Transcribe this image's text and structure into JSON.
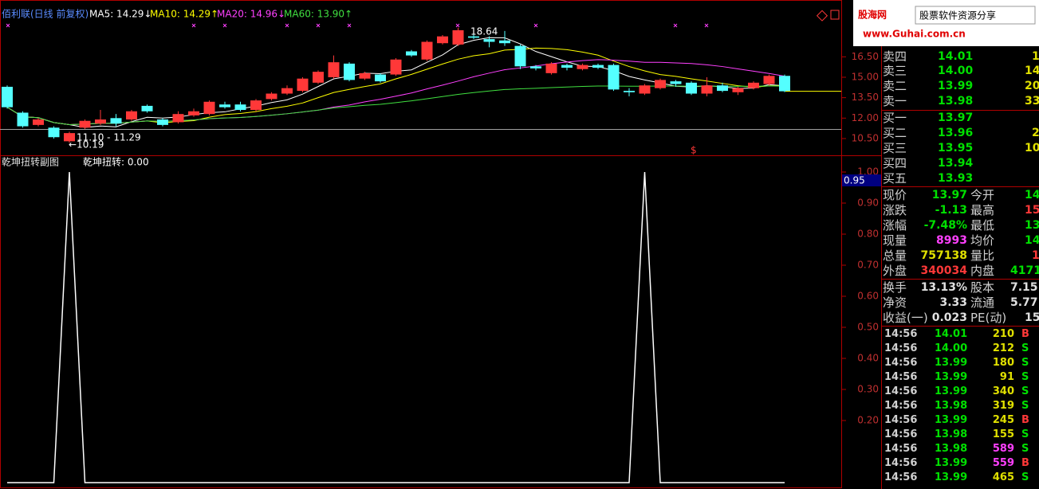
{
  "header": {
    "legend": [
      {
        "text": "佰利联(日线 前复权)",
        "color": "#5a8cff"
      },
      {
        "text": "MA5: 14.29↓",
        "color": "#ffffff"
      },
      {
        "text": "MA10: 14.29↑",
        "color": "#ffff00"
      },
      {
        "text": "MA20: 14.96↓",
        "color": "#ff40ff"
      },
      {
        "text": "MA60: 13.90↑",
        "color": "#40e040"
      }
    ]
  },
  "main_chart": {
    "type": "candlestick",
    "ylim": [
      9.27,
      20.67
    ],
    "yticks": [
      {
        "value": 16.5,
        "label": "16.50"
      },
      {
        "value": 15,
        "label": "15.00"
      },
      {
        "value": 13.5,
        "label": "13.50"
      },
      {
        "value": 12,
        "label": "12.00"
      },
      {
        "value": 10.5,
        "label": "10.50"
      }
    ],
    "up_color": "#ff3838",
    "down_color": "#54ffff",
    "candles": [
      {
        "o": 14.3,
        "h": 14.4,
        "l": 12.7,
        "c": 12.8
      },
      {
        "o": 12.4,
        "h": 12.5,
        "l": 11.3,
        "c": 11.4
      },
      {
        "o": 11.5,
        "h": 12.0,
        "l": 11.4,
        "c": 11.9
      },
      {
        "o": 11.3,
        "h": 11.4,
        "l": 10.5,
        "c": 10.6
      },
      {
        "o": 10.3,
        "h": 11.0,
        "l": 10.19,
        "c": 10.9
      },
      {
        "o": 11.3,
        "h": 11.9,
        "l": 11.2,
        "c": 11.8
      },
      {
        "o": 11.6,
        "h": 12.6,
        "l": 11.5,
        "c": 11.9
      },
      {
        "o": 12.0,
        "h": 12.3,
        "l": 11.4,
        "c": 11.6
      },
      {
        "o": 11.9,
        "h": 12.6,
        "l": 11.8,
        "c": 12.5
      },
      {
        "o": 12.9,
        "h": 13.0,
        "l": 12.4,
        "c": 12.5
      },
      {
        "o": 11.9,
        "h": 12.0,
        "l": 11.4,
        "c": 11.5
      },
      {
        "o": 11.7,
        "h": 12.5,
        "l": 11.6,
        "c": 12.3
      },
      {
        "o": 12.2,
        "h": 12.7,
        "l": 12.1,
        "c": 12.5
      },
      {
        "o": 12.3,
        "h": 13.3,
        "l": 12.2,
        "c": 13.2
      },
      {
        "o": 13.0,
        "h": 13.2,
        "l": 12.7,
        "c": 12.8
      },
      {
        "o": 13.0,
        "h": 13.2,
        "l": 12.5,
        "c": 12.6
      },
      {
        "o": 12.6,
        "h": 13.4,
        "l": 12.5,
        "c": 13.3
      },
      {
        "o": 13.4,
        "h": 13.9,
        "l": 13.3,
        "c": 13.8
      },
      {
        "o": 13.8,
        "h": 14.4,
        "l": 13.7,
        "c": 14.2
      },
      {
        "o": 14.0,
        "h": 15.0,
        "l": 13.9,
        "c": 14.9
      },
      {
        "o": 14.6,
        "h": 15.5,
        "l": 14.5,
        "c": 15.4
      },
      {
        "o": 15.0,
        "h": 16.6,
        "l": 14.9,
        "c": 16.1
      },
      {
        "o": 16.0,
        "h": 16.1,
        "l": 14.7,
        "c": 14.8
      },
      {
        "o": 14.9,
        "h": 15.4,
        "l": 14.8,
        "c": 15.3
      },
      {
        "o": 15.2,
        "h": 15.3,
        "l": 14.6,
        "c": 14.7
      },
      {
        "o": 15.2,
        "h": 16.4,
        "l": 15.1,
        "c": 16.3
      },
      {
        "o": 16.9,
        "h": 17.0,
        "l": 16.5,
        "c": 16.6
      },
      {
        "o": 16.3,
        "h": 17.7,
        "l": 16.2,
        "c": 17.6
      },
      {
        "o": 17.5,
        "h": 18.1,
        "l": 17.4,
        "c": 18.0
      },
      {
        "o": 17.4,
        "h": 18.64,
        "l": 17.3,
        "c": 18.45
      },
      {
        "o": 18.0,
        "h": 18.2,
        "l": 17.8,
        "c": 17.9
      },
      {
        "o": 17.8,
        "h": 18.0,
        "l": 17.2,
        "c": 17.6
      },
      {
        "o": 17.7,
        "h": 18.4,
        "l": 17.3,
        "c": 17.5
      },
      {
        "o": 17.3,
        "h": 17.4,
        "l": 15.6,
        "c": 15.8
      },
      {
        "o": 15.8,
        "h": 15.9,
        "l": 15.5,
        "c": 15.65
      },
      {
        "o": 15.3,
        "h": 16.1,
        "l": 15.2,
        "c": 16.0
      },
      {
        "o": 15.9,
        "h": 16.0,
        "l": 15.5,
        "c": 15.7
      },
      {
        "o": 15.6,
        "h": 16.0,
        "l": 15.5,
        "c": 15.9
      },
      {
        "o": 15.9,
        "h": 16.0,
        "l": 15.6,
        "c": 15.7
      },
      {
        "o": 15.9,
        "h": 16.0,
        "l": 14.0,
        "c": 14.1
      },
      {
        "o": 14.0,
        "h": 14.2,
        "l": 13.6,
        "c": 13.9
      },
      {
        "o": 13.8,
        "h": 14.5,
        "l": 13.7,
        "c": 14.4
      },
      {
        "o": 14.2,
        "h": 14.9,
        "l": 14.1,
        "c": 14.8
      },
      {
        "o": 14.7,
        "h": 14.8,
        "l": 14.3,
        "c": 14.5
      },
      {
        "o": 14.6,
        "h": 14.7,
        "l": 13.7,
        "c": 13.8
      },
      {
        "o": 13.8,
        "h": 15.0,
        "l": 13.6,
        "c": 14.4
      },
      {
        "o": 14.4,
        "h": 14.6,
        "l": 13.9,
        "c": 14.0
      },
      {
        "o": 13.9,
        "h": 14.3,
        "l": 13.7,
        "c": 14.2
      },
      {
        "o": 14.2,
        "h": 14.7,
        "l": 14.1,
        "c": 14.6
      },
      {
        "o": 14.5,
        "h": 15.2,
        "l": 14.4,
        "c": 15.1
      },
      {
        "o": 15.1,
        "h": 15.2,
        "l": 13.9,
        "c": 13.97
      }
    ],
    "annotations": [
      "18.64",
      "11.10 - 11.29",
      "←10.19",
      "$"
    ]
  },
  "sub_chart": {
    "type": "line",
    "title": "乾坤扭转副图",
    "value_text": "乾坤扭转: 0.00",
    "ylim": [
      0,
      1.05
    ],
    "yticks": [
      {
        "value": 1,
        "label": "1.00"
      },
      {
        "value": 0.9,
        "label": "0.90"
      },
      {
        "value": 0.8,
        "label": "0.80"
      },
      {
        "value": 0.7,
        "label": "0.70"
      },
      {
        "value": 0.6,
        "label": "0.60"
      },
      {
        "value": 0.5,
        "label": "0.50"
      },
      {
        "value": 0.4,
        "label": "0.40"
      },
      {
        "value": 0.3,
        "label": "0.30"
      },
      {
        "value": 0.2,
        "label": "0.20"
      }
    ],
    "cursor_label": "0.95",
    "color": "#ffffff",
    "values": [
      0,
      0,
      0,
      0,
      1,
      0,
      0,
      0,
      0,
      0,
      0,
      0,
      0,
      0,
      0,
      0,
      0,
      0,
      0,
      0,
      0,
      0,
      0,
      0,
      0,
      0,
      0,
      0,
      0,
      0,
      0,
      0,
      0,
      0,
      0,
      0,
      0,
      0,
      0,
      0,
      0,
      1,
      0,
      0,
      0,
      0,
      0,
      0,
      0,
      0,
      0
    ]
  },
  "watermark": {
    "brand": "股海网",
    "slogan": "股票软件资源分享",
    "url": "www.Guhai.com.cn"
  },
  "order_book": [
    {
      "label": "卖四",
      "price": "14.01",
      "vol": "1"
    },
    {
      "label": "卖三",
      "price": "14.00",
      "vol": "14"
    },
    {
      "label": "卖二",
      "price": "13.99",
      "vol": "20"
    },
    {
      "label": "卖一",
      "price": "13.98",
      "vol": "33"
    },
    {
      "label": "买一",
      "price": "13.97"
    },
    {
      "label": "买二",
      "price": "13.96",
      "vol": "2"
    },
    {
      "label": "买三",
      "price": "13.95",
      "vol": "10"
    },
    {
      "label": "买四",
      "price": "13.94"
    },
    {
      "label": "买五",
      "price": "13.93"
    }
  ],
  "stats": [
    {
      "l1": "现价",
      "v1": "13.97",
      "c1": "#00e000",
      "l2": "今开",
      "v2": "14",
      "c2": "#00e000"
    },
    {
      "l1": "涨跌",
      "v1": "-1.13",
      "c1": "#00e000",
      "l2": "最高",
      "v2": "15",
      "c2": "#ff3838"
    },
    {
      "l1": "涨幅",
      "v1": "-7.48%",
      "c1": "#00e000",
      "l2": "最低",
      "v2": "13",
      "c2": "#00e000"
    },
    {
      "l1": "现量",
      "v1": "8993",
      "c1": "#ff40ff",
      "l2": "均价",
      "v2": "14",
      "c2": "#00e000"
    },
    {
      "l1": "总量",
      "v1": "757138",
      "c1": "#e0e000",
      "l2": "量比",
      "v2": "1",
      "c2": "#ff3838"
    },
    {
      "l1": "外盘",
      "v1": "340034",
      "c1": "#ff3838",
      "l2": "内盘",
      "v2": "4171",
      "c2": "#00e000"
    },
    {
      "l1": "换手",
      "v1": "13.13%",
      "c1": "#e0e0e0",
      "l2": "股本",
      "v2": "7.15",
      "c2": "#e0e0e0"
    },
    {
      "l1": "净资",
      "v1": "3.33",
      "c1": "#e0e0e0",
      "l2": "流通",
      "v2": "5.77",
      "c2": "#e0e0e0"
    },
    {
      "l1": "收益(一)",
      "v1": "0.023",
      "c1": "#e0e0e0",
      "l2": "PE(动)",
      "v2": "15",
      "c2": "#e0e0e0"
    }
  ],
  "trades": [
    {
      "time": "14:56",
      "price": "14.01",
      "vol": "210",
      "side": "B",
      "big": false
    },
    {
      "time": "14:56",
      "price": "14.00",
      "vol": "212",
      "side": "S",
      "big": false
    },
    {
      "time": "14:56",
      "price": "13.99",
      "vol": "180",
      "side": "S",
      "big": false
    },
    {
      "time": "14:56",
      "price": "13.99",
      "vol": "91",
      "side": "S",
      "big": false
    },
    {
      "time": "14:56",
      "price": "13.99",
      "vol": "340",
      "side": "S",
      "big": false
    },
    {
      "time": "14:56",
      "price": "13.98",
      "vol": "319",
      "side": "S",
      "big": false
    },
    {
      "time": "14:56",
      "price": "13.99",
      "vol": "245",
      "side": "B",
      "big": false
    },
    {
      "time": "14:56",
      "price": "13.98",
      "vol": "155",
      "side": "S",
      "big": false
    },
    {
      "time": "14:56",
      "price": "13.98",
      "vol": "589",
      "side": "S",
      "big": true
    },
    {
      "time": "14:56",
      "price": "13.99",
      "vol": "559",
      "side": "B",
      "big": true
    },
    {
      "time": "14:56",
      "price": "13.99",
      "vol": "465",
      "side": "S",
      "big": false
    }
  ]
}
